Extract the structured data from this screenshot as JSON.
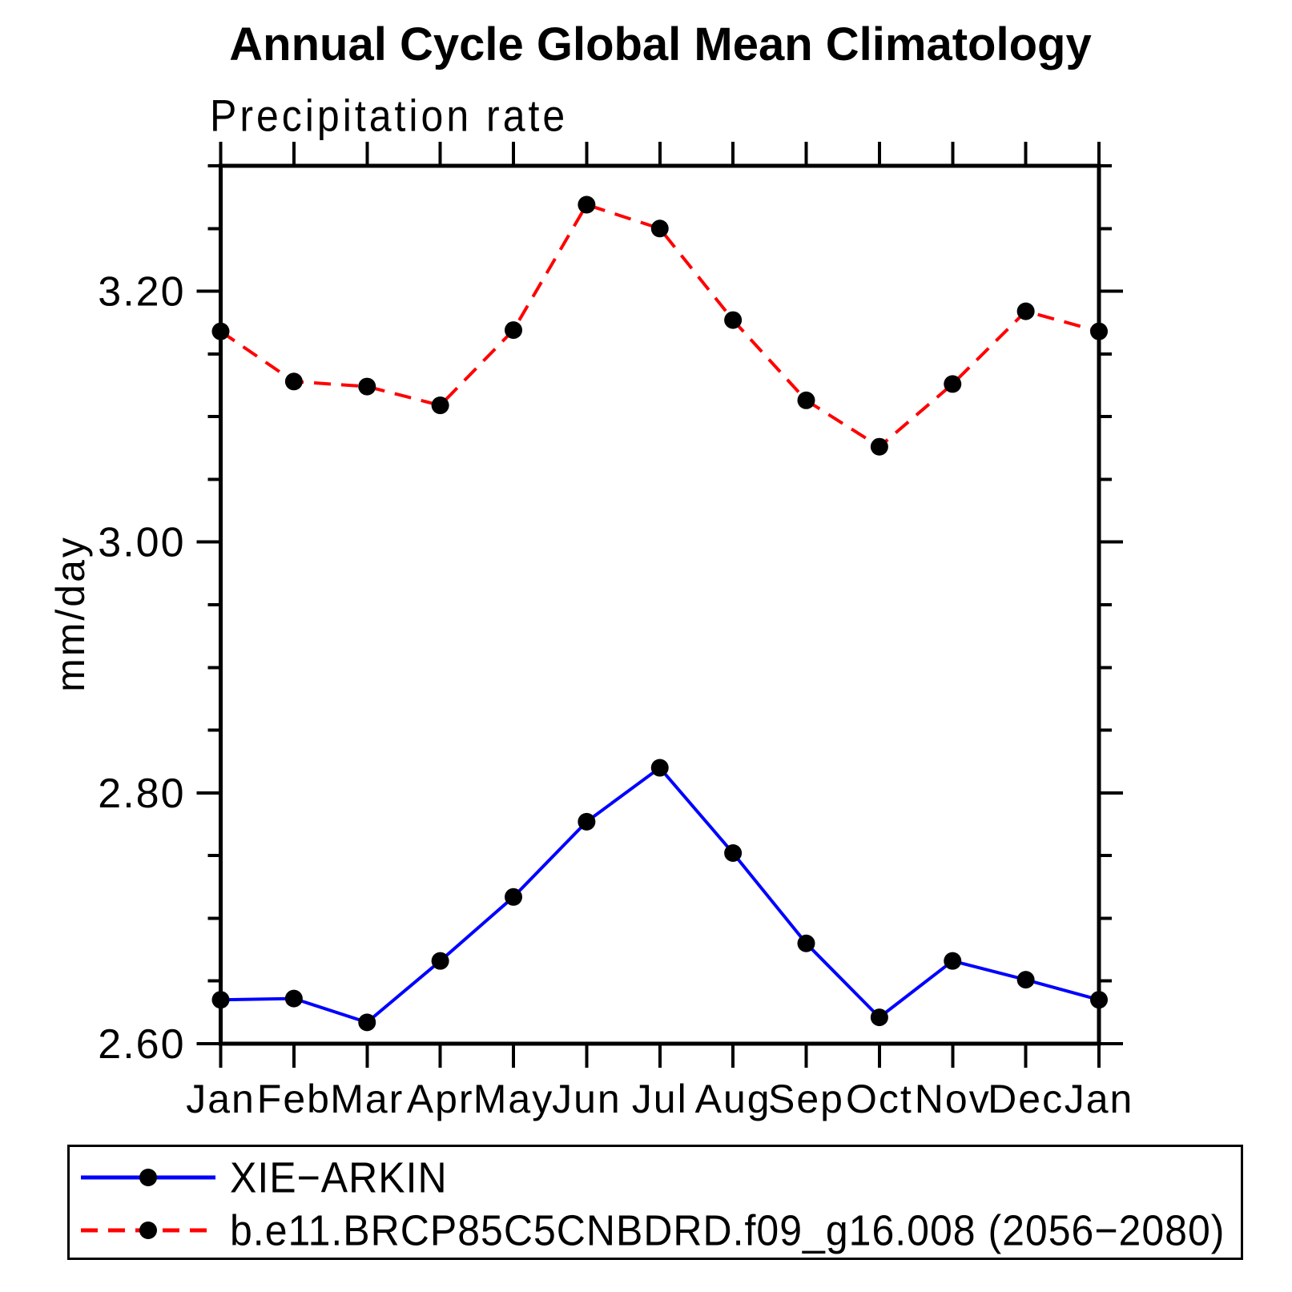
{
  "chart_data": {
    "type": "line",
    "title": "Annual Cycle Global Mean Climatology",
    "subtitle": "Precipitation rate",
    "ylabel": "mm/day",
    "x_categories": [
      "Jan",
      "Feb",
      "Mar",
      "Apr",
      "May",
      "Jun",
      "Jul",
      "Aug",
      "Sep",
      "Oct",
      "Nov",
      "Dec",
      "Jan"
    ],
    "ylim": [
      2.6,
      3.3
    ],
    "ytick_major": [
      2.6,
      2.8,
      3.0,
      3.2
    ],
    "ytick_labels": [
      "2.60",
      "2.80",
      "3.00",
      "3.20"
    ],
    "ytick_minor_step": 0.05,
    "grid": false,
    "legend_position": "bottom-box",
    "series": [
      {
        "id": "xie-arkin",
        "name": "XIE−ARKIN",
        "color": "#0000ff",
        "line_style": "solid",
        "marker": "filled-circle",
        "marker_color": "#000000",
        "values": [
          2.635,
          2.636,
          2.617,
          2.666,
          2.717,
          2.777,
          2.82,
          2.752,
          2.68,
          2.621,
          2.666,
          2.651,
          2.635
        ]
      },
      {
        "id": "model-brcp85",
        "name": "b.e11.BRCP85C5CNBDRD.f09_g16.008 (2056−2080)",
        "color": "#ff0000",
        "line_style": "dashed",
        "marker": "filled-circle",
        "marker_color": "#000000",
        "values": [
          3.168,
          3.128,
          3.124,
          3.109,
          3.169,
          3.269,
          3.25,
          3.177,
          3.113,
          3.076,
          3.126,
          3.184,
          3.168
        ]
      }
    ]
  }
}
